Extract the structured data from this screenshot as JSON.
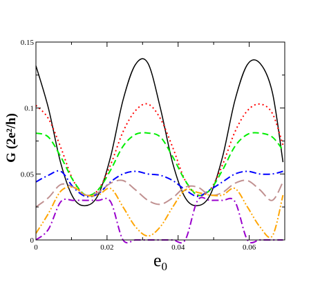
{
  "chart_data": {
    "type": "line",
    "title": "",
    "xlabel": "e",
    "xlabel_subscript": "0",
    "ylabel": "G (2e²/h)",
    "xlim": [
      0,
      0.07
    ],
    "ylim": [
      0,
      0.15
    ],
    "xticks": [
      0,
      0.02,
      0.04,
      0.06
    ],
    "xtick_labels": [
      "0",
      "0.02",
      "0.04",
      "0.06"
    ],
    "yticks": [
      0,
      0.05,
      0.1,
      0.15
    ],
    "ytick_labels": [
      "0",
      "0.05",
      "0.1",
      "0.15"
    ],
    "grid": false,
    "legend": "none",
    "x": [
      0,
      0.0035,
      0.007,
      0.0105,
      0.014,
      0.0175,
      0.021,
      0.0245,
      0.028,
      0.0315,
      0.035,
      0.0385,
      0.042,
      0.0455,
      0.049,
      0.0525,
      0.056,
      0.0595,
      0.063,
      0.0665,
      0.0695
    ],
    "series": [
      {
        "color": "#000000",
        "dash": "solid",
        "values": [
          0.132,
          0.1,
          0.058,
          0.032,
          0.026,
          0.034,
          0.063,
          0.106,
          0.133,
          0.134,
          0.1,
          0.058,
          0.032,
          0.026,
          0.034,
          0.063,
          0.106,
          0.133,
          0.134,
          0.112,
          0.059
        ]
      },
      {
        "color": "#ff0000",
        "dash": "dotted",
        "values": [
          0.102,
          0.092,
          0.07,
          0.045,
          0.034,
          0.038,
          0.057,
          0.082,
          0.098,
          0.103,
          0.092,
          0.07,
          0.045,
          0.034,
          0.038,
          0.057,
          0.082,
          0.098,
          0.103,
          0.096,
          0.072
        ]
      },
      {
        "color": "#00ee00",
        "dash": "dashed",
        "values": [
          0.081,
          0.078,
          0.063,
          0.045,
          0.034,
          0.038,
          0.053,
          0.071,
          0.08,
          0.081,
          0.078,
          0.063,
          0.045,
          0.034,
          0.038,
          0.053,
          0.071,
          0.08,
          0.081,
          0.078,
          0.068
        ]
      },
      {
        "color": "#0000ff",
        "dash": "dashdot",
        "values": [
          0.044,
          0.049,
          0.052,
          0.04,
          0.033,
          0.035,
          0.044,
          0.05,
          0.052,
          0.05,
          0.049,
          0.045,
          0.038,
          0.033,
          0.038,
          0.044,
          0.05,
          0.052,
          0.05,
          0.05,
          0.052
        ]
      },
      {
        "color": "#c09090",
        "dash": "longdash",
        "values": [
          0.025,
          0.032,
          0.042,
          0.04,
          0.034,
          0.036,
          0.043,
          0.045,
          0.038,
          0.03,
          0.027,
          0.032,
          0.04,
          0.04,
          0.034,
          0.036,
          0.043,
          0.045,
          0.038,
          0.03,
          0.044
        ]
      },
      {
        "color": "#ffa500",
        "dash": "dashdotdot",
        "values": [
          0.005,
          0.02,
          0.037,
          0.04,
          0.034,
          0.034,
          0.039,
          0.025,
          0.01,
          0.003,
          0.01,
          0.025,
          0.038,
          0.036,
          0.034,
          0.034,
          0.039,
          0.025,
          0.01,
          0.003,
          0.034
        ]
      },
      {
        "color": "#9900cc",
        "dash": "dashdot",
        "values": [
          0.0,
          0.008,
          0.029,
          0.03,
          0.03,
          0.03,
          0.029,
          0.0,
          0.0,
          0.0,
          0.0,
          0.0,
          0.0,
          0.03,
          0.03,
          0.03,
          0.029,
          0.0,
          0.0,
          0.0,
          0.0
        ]
      }
    ]
  }
}
